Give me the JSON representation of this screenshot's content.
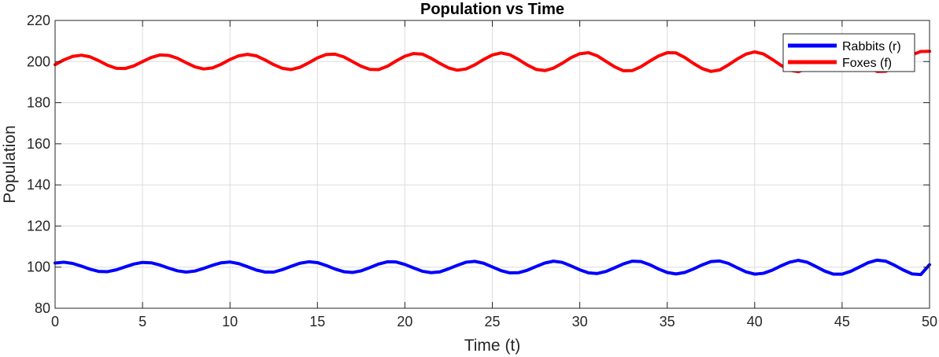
{
  "chart_data": {
    "type": "line",
    "title": "Population vs Time",
    "xlabel": "Time (t)",
    "ylabel": "Population",
    "xlim": [
      0,
      50
    ],
    "ylim": [
      80,
      220
    ],
    "xticks": [
      0,
      5,
      10,
      15,
      20,
      25,
      30,
      35,
      40,
      45,
      50
    ],
    "yticks": [
      80,
      100,
      120,
      140,
      160,
      180,
      200,
      220
    ],
    "grid": true,
    "legend_position": "top-right",
    "series": [
      {
        "name": "Rabbits (r)",
        "color": "#0000ff",
        "x": [
          0,
          0.5,
          1,
          1.5,
          2,
          2.5,
          3,
          3.5,
          4,
          4.5,
          5,
          5.5,
          6,
          6.5,
          7,
          7.5,
          8,
          8.5,
          9,
          9.5,
          10,
          10.5,
          11,
          11.5,
          12,
          12.5,
          13,
          13.5,
          14,
          14.5,
          15,
          15.5,
          16,
          16.5,
          17,
          17.5,
          18,
          18.5,
          19,
          19.5,
          20,
          20.5,
          21,
          21.5,
          22,
          22.5,
          23,
          23.5,
          24,
          24.5,
          25,
          25.5,
          26,
          26.5,
          27,
          27.5,
          28,
          28.5,
          29,
          29.5,
          30,
          30.5,
          31,
          31.5,
          32,
          32.5,
          33,
          33.5,
          34,
          34.5,
          35,
          35.5,
          36,
          36.5,
          37,
          37.5,
          38,
          38.5,
          39,
          39.5,
          40,
          40.5,
          41,
          41.5,
          42,
          42.5,
          43,
          43.5,
          44,
          44.5,
          45,
          45.5,
          46,
          46.5,
          47,
          47.5,
          48,
          48.5,
          49,
          49.5,
          50
        ],
        "y": [
          102.0,
          102.4,
          101.8,
          100.5,
          99.0,
          97.9,
          97.8,
          98.7,
          100.1,
          101.5,
          102.3,
          102.1,
          101.0,
          99.5,
          98.2,
          97.6,
          98.1,
          99.4,
          100.9,
          102.1,
          102.5,
          101.7,
          100.2,
          98.6,
          97.6,
          97.6,
          98.8,
          100.4,
          101.9,
          102.6,
          102.2,
          100.8,
          99.1,
          97.8,
          97.4,
          98.2,
          99.8,
          101.5,
          102.6,
          102.5,
          101.3,
          99.6,
          98.0,
          97.3,
          97.7,
          99.2,
          100.9,
          102.4,
          102.8,
          101.9,
          100.1,
          98.3,
          97.2,
          97.3,
          98.5,
          100.3,
          102.0,
          102.9,
          102.3,
          100.6,
          98.7,
          97.2,
          96.9,
          97.9,
          99.7,
          101.6,
          102.9,
          102.7,
          101.2,
          99.1,
          97.4,
          96.7,
          97.4,
          99.1,
          101.1,
          102.7,
          103.0,
          101.8,
          99.7,
          97.7,
          96.6,
          97.0,
          98.5,
          100.6,
          102.4,
          103.3,
          102.4,
          100.3,
          98.1,
          96.6,
          96.6,
          98.0,
          100.1,
          102.2,
          103.4,
          102.9,
          100.9,
          98.6,
          96.7,
          96.4,
          101.2
        ]
      },
      {
        "name": "Foxes (f)",
        "color": "#ff0000",
        "x": [
          0,
          0.5,
          1,
          1.5,
          2,
          2.5,
          3,
          3.5,
          4,
          4.5,
          5,
          5.5,
          6,
          6.5,
          7,
          7.5,
          8,
          8.5,
          9,
          9.5,
          10,
          10.5,
          11,
          11.5,
          12,
          12.5,
          13,
          13.5,
          14,
          14.5,
          15,
          15.5,
          16,
          16.5,
          17,
          17.5,
          18,
          18.5,
          19,
          19.5,
          20,
          20.5,
          21,
          21.5,
          22,
          22.5,
          23,
          23.5,
          24,
          24.5,
          25,
          25.5,
          26,
          26.5,
          27,
          27.5,
          28,
          28.5,
          29,
          29.5,
          30,
          30.5,
          31,
          31.5,
          32,
          32.5,
          33,
          33.5,
          34,
          34.5,
          35,
          35.5,
          36,
          36.5,
          37,
          37.5,
          38,
          38.5,
          39,
          39.5,
          40,
          40.5,
          41,
          41.5,
          42,
          42.5,
          43,
          43.5,
          44,
          44.5,
          45,
          45.5,
          46,
          46.5,
          47,
          47.5,
          48,
          48.5,
          49,
          49.5,
          50
        ],
        "y": [
          198.5,
          200.8,
          202.5,
          203.1,
          202.3,
          200.4,
          198.2,
          196.7,
          196.6,
          197.9,
          200.0,
          202.0,
          203.2,
          203.0,
          201.6,
          199.4,
          197.4,
          196.4,
          196.9,
          198.7,
          201.0,
          202.8,
          203.5,
          202.8,
          200.8,
          198.5,
          196.7,
          196.1,
          197.2,
          199.4,
          201.8,
          203.4,
          203.6,
          202.3,
          200.0,
          197.7,
          196.2,
          196.1,
          197.7,
          200.3,
          202.6,
          203.9,
          203.6,
          201.6,
          199.1,
          196.9,
          195.8,
          196.4,
          198.4,
          201.0,
          203.2,
          204.2,
          203.3,
          201.0,
          198.3,
          196.2,
          195.6,
          196.8,
          199.2,
          201.9,
          203.8,
          204.3,
          202.8,
          200.1,
          197.4,
          195.5,
          195.6,
          197.5,
          200.2,
          202.7,
          204.3,
          204.2,
          202.0,
          199.1,
          196.6,
          195.2,
          195.9,
          198.4,
          201.2,
          203.6,
          204.7,
          203.7,
          201.1,
          198.2,
          195.8,
          195.1,
          196.6,
          199.4,
          202.2,
          204.3,
          204.8,
          203.0,
          200.0,
          197.2,
          195.2,
          195.3,
          197.5,
          200.4,
          203.3,
          204.9,
          205.0
        ]
      }
    ]
  }
}
